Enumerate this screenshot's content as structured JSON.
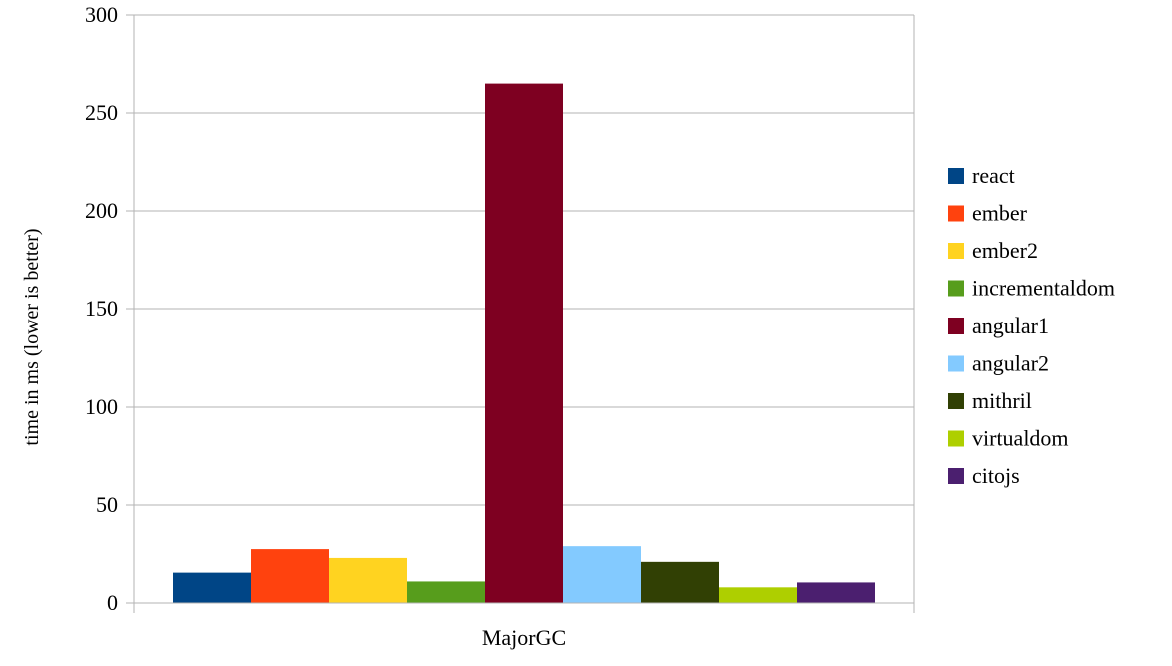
{
  "chart_data": {
    "type": "bar",
    "title": "",
    "xlabel": "",
    "ylabel": "time in ms (lower is better)",
    "categories": [
      "MajorGC"
    ],
    "ylim": [
      0,
      300
    ],
    "yticks": [
      0,
      50,
      100,
      150,
      200,
      250,
      300
    ],
    "grid": true,
    "legend_position": "right",
    "series": [
      {
        "name": "react",
        "values": [
          15.5
        ],
        "color": "#004586"
      },
      {
        "name": "ember",
        "values": [
          27.5
        ],
        "color": "#ff420e"
      },
      {
        "name": "ember2",
        "values": [
          23.0
        ],
        "color": "#ffd320"
      },
      {
        "name": "incrementaldom",
        "values": [
          11.0
        ],
        "color": "#579d1c"
      },
      {
        "name": "angular1",
        "values": [
          265.0
        ],
        "color": "#7e0021"
      },
      {
        "name": "angular2",
        "values": [
          29.0
        ],
        "color": "#83caff"
      },
      {
        "name": "mithril",
        "values": [
          21.0
        ],
        "color": "#314004"
      },
      {
        "name": "virtualdom",
        "values": [
          8.0
        ],
        "color": "#aecf00"
      },
      {
        "name": "citojs",
        "values": [
          10.5
        ],
        "color": "#4b1f6f"
      }
    ]
  }
}
